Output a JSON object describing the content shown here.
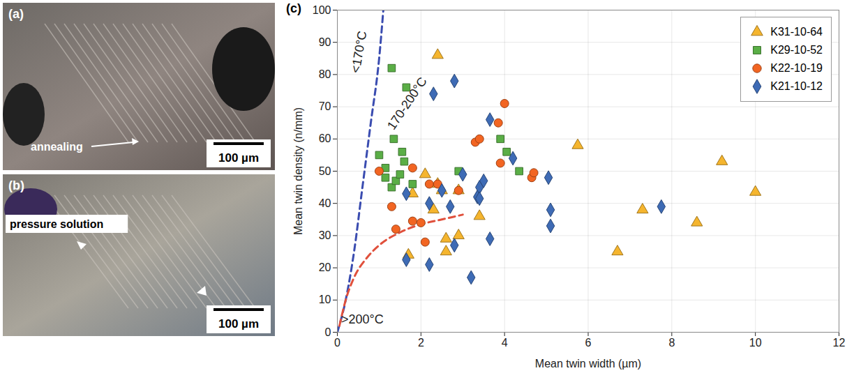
{
  "image_panels": [
    {
      "label": "(a)",
      "annotations": [
        "annealing"
      ],
      "scale_bar": "100 µm"
    },
    {
      "label": "(b)",
      "annotations": [
        "pressure solution"
      ],
      "scale_bar": "100 µm"
    }
  ],
  "chart_data": {
    "type": "scatter",
    "label": "(c)",
    "x_label": "Mean twin width (µm)",
    "y_label": "Mean twin density (n/mm)",
    "xlim": [
      0,
      12
    ],
    "ylim": [
      0,
      100
    ],
    "xticks": [
      0,
      2,
      4,
      6,
      8,
      10,
      12
    ],
    "yticks": [
      0,
      10,
      20,
      30,
      40,
      50,
      60,
      70,
      80,
      90,
      100
    ],
    "grid": true,
    "legend": "top-right",
    "series": [
      {
        "name": "K31-10-64",
        "color": "#f5b52e",
        "marker": "triangle",
        "x": [
          2.4,
          1.7,
          1.8,
          2.1,
          2.3,
          2.4,
          2.5,
          2.6,
          2.6,
          2.9,
          2.9,
          3.4,
          5.75,
          6.7,
          7.3,
          8.6,
          9.2,
          10
        ],
        "y": [
          86,
          24,
          43,
          49,
          38,
          46,
          44,
          29,
          25,
          30,
          44,
          36,
          58,
          25,
          38,
          34,
          53,
          43.5
        ]
      },
      {
        "name": "K29-10-52",
        "color": "#5aae46",
        "marker": "square",
        "x": [
          1.3,
          1.65,
          1.0,
          1.15,
          1.15,
          1.3,
          1.35,
          1.4,
          1.5,
          1.55,
          1.6,
          1.8,
          2.9,
          3.9,
          4.05,
          4.35
        ],
        "y": [
          82,
          76,
          55,
          51,
          48,
          45,
          60,
          47,
          49,
          56,
          53,
          46,
          50,
          60,
          56,
          50
        ]
      },
      {
        "name": "K22-10-19",
        "color": "#f26522",
        "marker": "circle",
        "x": [
          1.0,
          1.3,
          1.4,
          1.8,
          1.8,
          2.0,
          2.1,
          2.2,
          2.4,
          2.9,
          3.3,
          3.4,
          3.85,
          3.9,
          4.0,
          4.65,
          4.7
        ],
        "y": [
          50,
          39,
          32,
          51,
          34.5,
          34,
          28,
          46,
          46,
          44,
          59,
          60,
          65,
          52.5,
          71,
          48,
          49.5
        ]
      },
      {
        "name": "K21-10-12",
        "color": "#3e6bb5",
        "marker": "diamond",
        "x": [
          1.65,
          1.65,
          2.2,
          2.2,
          2.3,
          2.5,
          2.7,
          2.8,
          2.8,
          3.0,
          3.2,
          3.35,
          3.4,
          3.4,
          3.5,
          3.65,
          3.65,
          4.2,
          5.05,
          5.1,
          5.1,
          7.75
        ],
        "y": [
          43,
          22.5,
          40,
          21,
          74,
          44,
          39,
          78,
          27,
          49,
          17,
          42,
          45,
          41.5,
          47,
          66,
          29,
          54,
          48,
          38,
          33,
          39
        ]
      }
    ],
    "curves": [
      {
        "type": "line",
        "color": "#3a4cb0",
        "line_style": "dashed",
        "x": [
          0,
          0.2,
          0.4,
          0.6,
          0.8,
          1.0,
          1.1
        ],
        "y": [
          0,
          10,
          25,
          45,
          65,
          85,
          100
        ]
      },
      {
        "type": "line",
        "color": "#e0503c",
        "line_style": "dashed",
        "x": [
          0.05,
          0.2,
          0.4,
          0.7,
          1.0,
          1.5,
          2.0,
          2.5,
          3.0
        ],
        "y": [
          2,
          10,
          17,
          23,
          27,
          31,
          33.5,
          35,
          36.5
        ]
      }
    ],
    "annotations": [
      {
        "text": "<170°C",
        "x": 0.52,
        "y": 87
      },
      {
        "text": "170-200°C",
        "x": 1.67,
        "y": 71
      },
      {
        "text": ">200°C",
        "x": 0.6,
        "y": 4
      }
    ]
  }
}
